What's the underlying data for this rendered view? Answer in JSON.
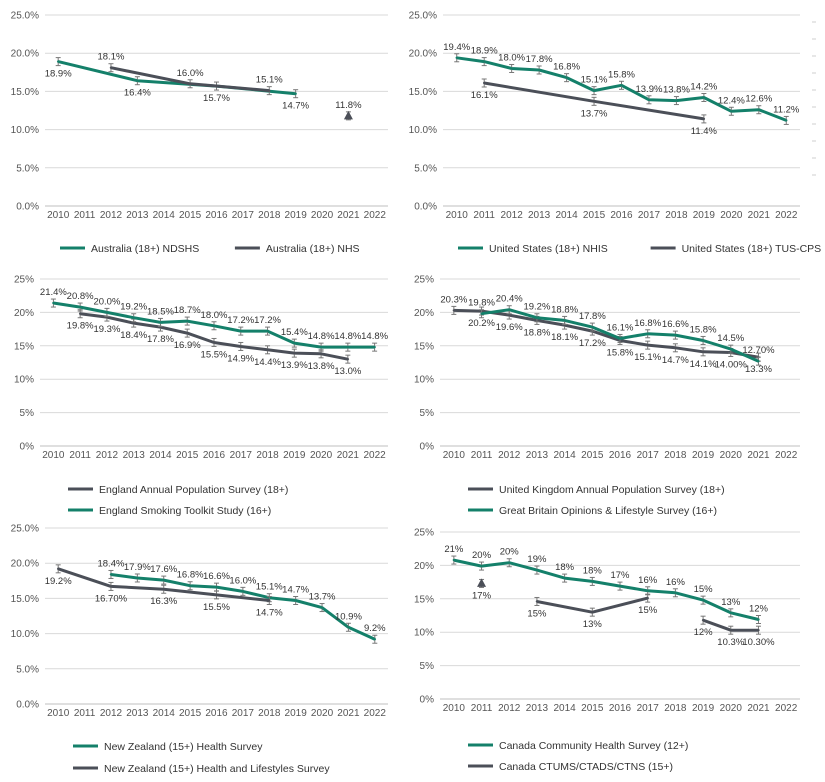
{
  "colors": {
    "teal": "#14806A",
    "dark": "#4B4F58",
    "grid": "#D9D9D9",
    "axis": "#BFBFBF"
  },
  "chart_data": [
    {
      "type": "line",
      "x": [
        2010,
        2011,
        2012,
        2013,
        2014,
        2015,
        2016,
        2017,
        2018,
        2019,
        2020,
        2021,
        2022
      ],
      "ylim": [
        0,
        25
      ],
      "yticks": [
        "0.0%",
        "5.0%",
        "10.0%",
        "15.0%",
        "20.0%",
        "25.0%"
      ],
      "grid": true,
      "legend": "bottom",
      "series": [
        {
          "name": "Australia (18+) NDSHS",
          "color": "teal",
          "points": [
            [
              2010,
              18.9
            ],
            [
              2013,
              16.4
            ],
            [
              2016,
              15.7
            ],
            [
              2019,
              14.7
            ]
          ],
          "labels": [
            "18.9%",
            "16.4%",
            "15.7%",
            "14.7%"
          ],
          "label_pos": [
            "below",
            "below",
            "below",
            "below"
          ]
        },
        {
          "name": "Australia (18+) NHS",
          "color": "dark",
          "points": [
            [
              2012,
              18.1
            ],
            [
              2015,
              16.0
            ],
            [
              2018,
              15.1
            ]
          ],
          "labels": [
            "18.1%",
            "16.0%",
            "15.1%"
          ],
          "label_pos": [
            "above",
            "above",
            "above"
          ]
        },
        {
          "name": "",
          "color": "dark",
          "marker": "triangle",
          "in_legend": false,
          "points": [
            [
              2021,
              11.8
            ]
          ],
          "labels": [
            "11.8%"
          ],
          "label_pos": [
            "above"
          ]
        }
      ]
    },
    {
      "type": "line",
      "x": [
        2010,
        2011,
        2012,
        2013,
        2014,
        2015,
        2016,
        2017,
        2018,
        2019,
        2020,
        2021,
        2022
      ],
      "ylim": [
        0,
        25
      ],
      "yticks": [
        "0.0%",
        "5.0%",
        "10.0%",
        "15.0%",
        "20.0%",
        "25.0%"
      ],
      "grid": true,
      "legend": "bottom",
      "series": [
        {
          "name": "United States (18+) NHIS",
          "color": "teal",
          "points": [
            [
              2010,
              19.4
            ],
            [
              2011,
              18.9
            ],
            [
              2012,
              18.0
            ],
            [
              2013,
              17.8
            ],
            [
              2014,
              16.8
            ],
            [
              2015,
              15.1
            ],
            [
              2016,
              15.8
            ],
            [
              2017,
              13.9
            ],
            [
              2018,
              13.8
            ],
            [
              2019,
              14.2
            ],
            [
              2020,
              12.4
            ],
            [
              2021,
              12.6
            ],
            [
              2022,
              11.2
            ]
          ],
          "labels": [
            "19.4%",
            "18.9%",
            "18.0%",
            "17.8%",
            "16.8%",
            "15.1%",
            "15.8%",
            "13.9%",
            "13.8%",
            "14.2%",
            "12.4%",
            "12.6%",
            "11.2%"
          ],
          "label_pos": [
            "above",
            "above",
            "above",
            "above",
            "above",
            "above",
            "above",
            "above",
            "above",
            "above",
            "above",
            "above",
            "above"
          ]
        },
        {
          "name": "United States (18+) TUS-CPS",
          "color": "dark",
          "points": [
            [
              2011,
              16.1
            ],
            [
              2015,
              13.7
            ],
            [
              2019,
              11.4
            ]
          ],
          "labels": [
            "16.1%",
            "13.7%",
            "11.4%"
          ],
          "label_pos": [
            "below",
            "below",
            "below"
          ]
        }
      ]
    },
    {
      "type": "line",
      "x": [
        2010,
        2011,
        2012,
        2013,
        2014,
        2015,
        2016,
        2017,
        2018,
        2019,
        2020,
        2021,
        2022
      ],
      "ylim": [
        0,
        25
      ],
      "yticks": [
        "0%",
        "5%",
        "10%",
        "15%",
        "20%",
        "25%"
      ],
      "grid": true,
      "legend": "bottom",
      "series": [
        {
          "name": "England Annual Population Survey (18+)",
          "color": "dark",
          "points": [
            [
              2011,
              19.8
            ],
            [
              2012,
              19.3
            ],
            [
              2013,
              18.4
            ],
            [
              2014,
              17.8
            ],
            [
              2015,
              16.9
            ],
            [
              2016,
              15.5
            ],
            [
              2017,
              14.9
            ],
            [
              2018,
              14.4
            ],
            [
              2019,
              13.9
            ],
            [
              2020,
              13.8
            ],
            [
              2021,
              13.0
            ]
          ],
          "labels": [
            "19.8%",
            "19.3%",
            "18.4%",
            "17.8%",
            "16.9%",
            "15.5%",
            "14.9%",
            "14.4%",
            "13.9%",
            "13.8%",
            "13.0%"
          ],
          "label_pos": [
            "below",
            "below",
            "below",
            "below",
            "below",
            "below",
            "below",
            "below",
            "below",
            "below",
            "below"
          ]
        },
        {
          "name": "England Smoking Toolkit Study (16+)",
          "color": "teal",
          "points": [
            [
              2010,
              21.4
            ],
            [
              2011,
              20.8
            ],
            [
              2012,
              20.0
            ],
            [
              2013,
              19.2
            ],
            [
              2014,
              18.5
            ],
            [
              2015,
              18.7
            ],
            [
              2016,
              18.0
            ],
            [
              2017,
              17.2
            ],
            [
              2018,
              17.2
            ],
            [
              2019,
              15.4
            ],
            [
              2020,
              14.8
            ],
            [
              2021,
              14.8
            ],
            [
              2022,
              14.8
            ]
          ],
          "labels": [
            "21.4%",
            "20.8%",
            "20.0%",
            "19.2%",
            "18.5%",
            "18.7%",
            "18.0%",
            "17.2%",
            "17.2%",
            "15.4%",
            "14.8%",
            "14.8%",
            "14.8%"
          ],
          "label_pos": [
            "above",
            "above",
            "above",
            "above",
            "above",
            "above",
            "above",
            "above",
            "above",
            "above",
            "above",
            "above",
            "above"
          ]
        }
      ]
    },
    {
      "type": "line",
      "x": [
        2010,
        2011,
        2012,
        2013,
        2014,
        2015,
        2016,
        2017,
        2018,
        2019,
        2020,
        2021,
        2022
      ],
      "ylim": [
        0,
        25
      ],
      "yticks": [
        "0%",
        "5%",
        "10%",
        "15%",
        "20%",
        "25%"
      ],
      "grid": true,
      "legend": "bottom",
      "series": [
        {
          "name": "United Kingdom  Annual Population Survey (18+)",
          "color": "dark",
          "points": [
            [
              2010,
              20.3
            ],
            [
              2011,
              20.2
            ],
            [
              2012,
              19.6
            ],
            [
              2013,
              18.8
            ],
            [
              2014,
              18.1
            ],
            [
              2015,
              17.2
            ],
            [
              2016,
              15.8
            ],
            [
              2017,
              15.1
            ],
            [
              2018,
              14.7
            ],
            [
              2019,
              14.1
            ],
            [
              2020,
              14.0
            ],
            [
              2021,
              13.3
            ]
          ],
          "labels": [
            "20.3%",
            "20.2%",
            "19.6%",
            "18.8%",
            "18.1%",
            "17.2%",
            "15.8%",
            "15.1%",
            "14.7%",
            "14.1%",
            "14.00%",
            "13.3%"
          ],
          "label_pos": [
            "above",
            "below",
            "below",
            "below",
            "below",
            "below",
            "below",
            "below",
            "below",
            "below",
            "below",
            "below"
          ]
        },
        {
          "name": "Great Britain Opinions & Lifestyle Survey (16+)",
          "color": "teal",
          "points": [
            [
              2011,
              19.8
            ],
            [
              2012,
              20.4
            ],
            [
              2013,
              19.2
            ],
            [
              2014,
              18.8
            ],
            [
              2015,
              17.8
            ],
            [
              2016,
              16.1
            ],
            [
              2017,
              16.8
            ],
            [
              2018,
              16.6
            ],
            [
              2019,
              15.8
            ],
            [
              2020,
              14.5
            ],
            [
              2021,
              12.7
            ]
          ],
          "labels": [
            "19.8%",
            "20.4%",
            "19.2%",
            "18.8%",
            "17.8%",
            "16.1%",
            "16.8%",
            "16.6%",
            "15.8%",
            "14.5%",
            "12.70%"
          ],
          "label_pos": [
            "above",
            "above",
            "above",
            "above",
            "above",
            "above",
            "above",
            "above",
            "above",
            "above",
            "above"
          ]
        }
      ]
    },
    {
      "type": "line",
      "x": [
        2010,
        2011,
        2012,
        2013,
        2014,
        2015,
        2016,
        2017,
        2018,
        2019,
        2020,
        2021,
        2022
      ],
      "ylim": [
        0,
        25
      ],
      "yticks": [
        "0.0%",
        "5.0%",
        "10.0%",
        "15.0%",
        "20.0%",
        "25.0%"
      ],
      "grid": true,
      "legend": "bottom",
      "series": [
        {
          "name": "New Zealand (15+) Health Survey",
          "color": "teal",
          "points": [
            [
              2012,
              18.4
            ],
            [
              2013,
              17.9
            ],
            [
              2014,
              17.6
            ],
            [
              2015,
              16.8
            ],
            [
              2016,
              16.6
            ],
            [
              2017,
              16.0
            ],
            [
              2018,
              15.1
            ],
            [
              2019,
              14.7
            ],
            [
              2020,
              13.7
            ],
            [
              2021,
              10.9
            ],
            [
              2022,
              9.2
            ]
          ],
          "labels": [
            "18.4%",
            "17.9%",
            "17.6%",
            "16.8%",
            "16.6%",
            "16.0%",
            "15.1%",
            "14.7%",
            "13.7%",
            "10.9%",
            "9.2%"
          ],
          "label_pos": [
            "above",
            "above",
            "above",
            "above",
            "above",
            "above",
            "above",
            "above",
            "above",
            "above",
            "above"
          ]
        },
        {
          "name": "New Zealand (15+) Health and Lifestyles Survey",
          "color": "dark",
          "points": [
            [
              2010,
              19.2
            ],
            [
              2012,
              16.7
            ],
            [
              2014,
              16.3
            ],
            [
              2016,
              15.5
            ],
            [
              2018,
              14.7
            ]
          ],
          "labels": [
            "19.2%",
            "16.70%",
            "16.3%",
            "15.5%",
            "14.7%"
          ],
          "label_pos": [
            "below",
            "below",
            "below",
            "below",
            "below"
          ]
        }
      ]
    },
    {
      "type": "line",
      "x": [
        2010,
        2011,
        2012,
        2013,
        2014,
        2015,
        2016,
        2017,
        2018,
        2019,
        2020,
        2021,
        2022
      ],
      "ylim": [
        0,
        25
      ],
      "yticks": [
        "0%",
        "5%",
        "10%",
        "15%",
        "20%",
        "25%"
      ],
      "grid": true,
      "legend": "bottom",
      "series": [
        {
          "name": "Canada Community Health Survey (12+)",
          "color": "teal",
          "points": [
            [
              2010,
              20.8
            ],
            [
              2011,
              19.9
            ],
            [
              2012,
              20.4
            ],
            [
              2013,
              19.3
            ],
            [
              2014,
              18.1
            ],
            [
              2015,
              17.6
            ],
            [
              2016,
              16.9
            ],
            [
              2017,
              16.2
            ],
            [
              2018,
              15.9
            ],
            [
              2019,
              14.8
            ],
            [
              2020,
              12.9
            ],
            [
              2021,
              11.9
            ]
          ],
          "labels": [
            "21%",
            "20%",
            "20%",
            "19%",
            "18%",
            "18%",
            "17%",
            "16%",
            "16%",
            "15%",
            "13%",
            "12%"
          ],
          "label_pos": [
            "above",
            "above",
            "above",
            "above",
            "above",
            "above",
            "above",
            "above",
            "above",
            "above",
            "above",
            "above"
          ]
        },
        {
          "name": "Canada CTUMS/CTADS/CTNS (15+)",
          "color": "dark",
          "points": [
            [
              2013,
              14.6
            ],
            [
              2015,
              13.0
            ],
            [
              2017,
              15.1
            ]
          ],
          "labels": [
            "15%",
            "13%",
            "15%"
          ],
          "label_pos": [
            "below",
            "below",
            "below"
          ]
        },
        {
          "name": "",
          "color": "dark",
          "in_legend": false,
          "points": [
            [
              2019,
              11.8
            ],
            [
              2020,
              10.3
            ],
            [
              2021,
              10.3
            ]
          ],
          "labels": [
            "12%",
            "10.3%",
            "10.30%"
          ],
          "label_pos": [
            "below",
            "below",
            "below"
          ]
        },
        {
          "name": "",
          "color": "dark",
          "marker": "triangle",
          "in_legend": false,
          "points": [
            [
              2011,
              17.3
            ]
          ],
          "labels": [
            "17%"
          ],
          "label_pos": [
            "below"
          ]
        }
      ]
    }
  ]
}
